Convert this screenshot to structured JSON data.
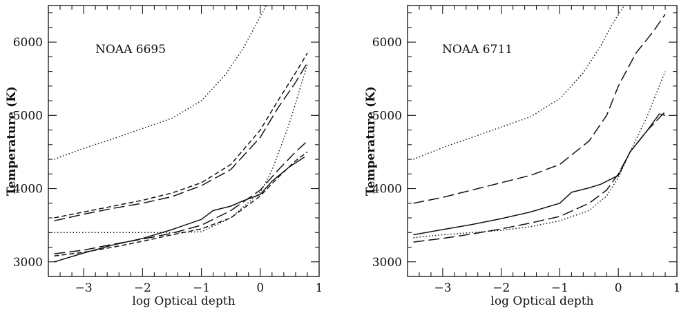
{
  "chart_data": [
    {
      "type": "line",
      "title": "NOAA 6695",
      "xlabel": "log Optical depth",
      "ylabel": "Temperature (K)",
      "xlim": [
        -3.6,
        1.0
      ],
      "ylim": [
        2800,
        6500
      ],
      "xticks": [
        -3,
        -2,
        -1,
        0,
        1
      ],
      "yticks": [
        3000,
        4000,
        5000,
        6000
      ],
      "grid": false,
      "legend": "none",
      "series": [
        {
          "style": "solid",
          "x": [
            -3.5,
            -3,
            -2.5,
            -2,
            -1.5,
            -1,
            -0.8,
            -0.5,
            -0.3,
            0,
            0.2,
            0.5,
            0.75
          ],
          "y": [
            3000,
            3120,
            3230,
            3320,
            3440,
            3580,
            3700,
            3760,
            3830,
            3920,
            4100,
            4300,
            4430
          ]
        },
        {
          "style": "dotted",
          "x": [
            -3.5,
            -3,
            -2.5,
            -2,
            -1.5,
            -1,
            -0.5,
            0,
            0.2,
            0.5,
            0.8
          ],
          "y": [
            3400,
            3400,
            3400,
            3400,
            3400,
            3410,
            3600,
            3950,
            4250,
            4900,
            5700
          ]
        },
        {
          "style": "dotted",
          "x": [
            -3.5,
            -3,
            -2.5,
            -2,
            -1.5,
            -1,
            -0.6,
            -0.3,
            -0.1,
            0.1
          ],
          "y": [
            4400,
            4550,
            4680,
            4820,
            4960,
            5200,
            5550,
            5900,
            6200,
            6500
          ]
        },
        {
          "style": "short-dashed",
          "x": [
            -3.5,
            -3,
            -2.5,
            -2,
            -1.5,
            -1,
            -0.5,
            0,
            0.3,
            0.6,
            0.8
          ],
          "y": [
            3080,
            3130,
            3200,
            3280,
            3370,
            3450,
            3600,
            3900,
            4150,
            4380,
            4500
          ]
        },
        {
          "style": "long-dashed",
          "x": [
            -3.5,
            -3,
            -2.5,
            -2,
            -1.5,
            -1,
            -0.5,
            0,
            0.3,
            0.6,
            0.8
          ],
          "y": [
            3110,
            3160,
            3240,
            3310,
            3390,
            3500,
            3700,
            3980,
            4250,
            4500,
            4650
          ]
        },
        {
          "style": "short-dashed",
          "x": [
            -3.5,
            -3,
            -2.5,
            -2,
            -1.5,
            -1,
            -0.5,
            0,
            0.3,
            0.6,
            0.8
          ],
          "y": [
            3600,
            3680,
            3760,
            3840,
            3940,
            4080,
            4330,
            4800,
            5200,
            5580,
            5850
          ]
        },
        {
          "style": "long-dashed",
          "x": [
            -3.5,
            -3,
            -2.5,
            -2,
            -1.5,
            -1,
            -0.5,
            0,
            0.3,
            0.6,
            0.8
          ],
          "y": [
            3560,
            3650,
            3730,
            3800,
            3890,
            4040,
            4260,
            4700,
            5100,
            5450,
            5720
          ]
        }
      ]
    },
    {
      "type": "line",
      "title": "NOAA 6711",
      "xlabel": "log Optical depth",
      "ylabel": "Temperature (K)",
      "xlim": [
        -3.6,
        1.0
      ],
      "ylim": [
        2800,
        6500
      ],
      "xticks": [
        -3,
        -2,
        -1,
        0,
        1
      ],
      "yticks": [
        3000,
        4000,
        5000,
        6000
      ],
      "grid": false,
      "legend": "none",
      "series": [
        {
          "style": "solid",
          "x": [
            -3.5,
            -3,
            -2.5,
            -2,
            -1.5,
            -1,
            -0.8,
            -0.5,
            -0.3,
            0,
            0.2,
            0.5,
            0.7,
            0.8
          ],
          "y": [
            3370,
            3440,
            3510,
            3590,
            3680,
            3800,
            3950,
            4010,
            4060,
            4180,
            4500,
            4800,
            5020,
            5000
          ]
        },
        {
          "style": "dotted",
          "x": [
            -3.5,
            -3,
            -2.5,
            -2,
            -1.5,
            -1,
            -0.5,
            -0.2,
            0,
            0.2,
            0.5,
            0.8
          ],
          "y": [
            3330,
            3370,
            3400,
            3430,
            3480,
            3560,
            3700,
            3900,
            4150,
            4500,
            5000,
            5600
          ]
        },
        {
          "style": "dotted",
          "x": [
            -3.5,
            -3,
            -2.5,
            -2,
            -1.5,
            -1,
            -0.6,
            -0.3,
            -0.1,
            0.1
          ],
          "y": [
            4400,
            4560,
            4700,
            4840,
            4980,
            5230,
            5580,
            5950,
            6250,
            6500
          ]
        },
        {
          "style": "long-dashed",
          "x": [
            -3.5,
            -3,
            -2.5,
            -2,
            -1.5,
            -1,
            -0.5,
            -0.2,
            0,
            0.2,
            0.5,
            0.8
          ],
          "y": [
            3270,
            3320,
            3380,
            3450,
            3530,
            3620,
            3800,
            3980,
            4200,
            4500,
            4800,
            5050
          ]
        },
        {
          "style": "long-dashed",
          "x": [
            -3.5,
            -3,
            -2.5,
            -2,
            -1.5,
            -1,
            -0.5,
            -0.2,
            0,
            0.3,
            0.6,
            0.8
          ],
          "y": [
            3800,
            3880,
            3980,
            4080,
            4180,
            4330,
            4650,
            5000,
            5400,
            5850,
            6150,
            6380
          ]
        }
      ]
    }
  ]
}
